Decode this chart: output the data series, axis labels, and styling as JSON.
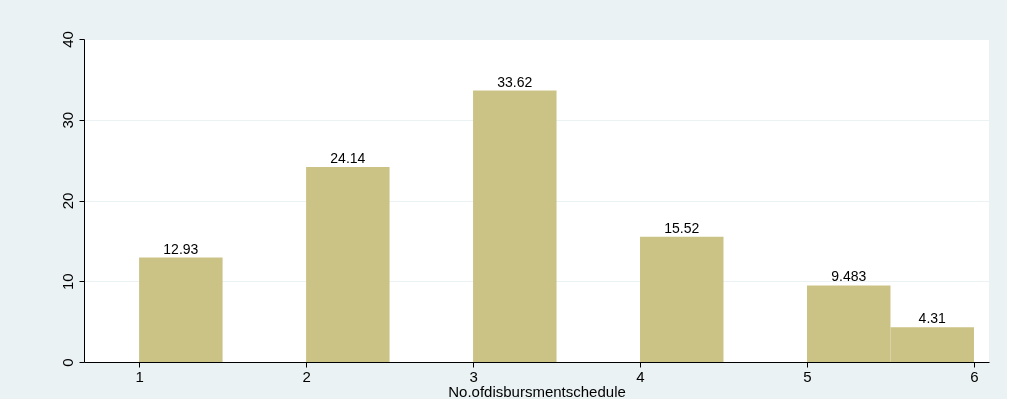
{
  "chart_data": {
    "type": "histogram",
    "xlabel": "No.ofdisbursmentschedule",
    "bins": [
      1,
      1.5,
      2,
      2.5,
      3,
      3.5,
      4,
      4.5,
      5,
      5.5,
      6
    ],
    "values": [
      12.93,
      0,
      24.14,
      0,
      33.62,
      0,
      15.52,
      0,
      9.483,
      4.31
    ],
    "value_labels": [
      "12.93",
      null,
      "24.14",
      null,
      "33.62",
      null,
      "15.52",
      null,
      "9.483",
      "4.31"
    ],
    "color": "#cbc385",
    "xlim": [
      0.67,
      6.09
    ],
    "xticks": [
      1,
      2,
      3,
      4,
      5,
      6
    ],
    "ylim": [
      0,
      40
    ],
    "yticks": [
      0,
      10,
      20,
      30,
      40
    ],
    "grid": "y"
  }
}
